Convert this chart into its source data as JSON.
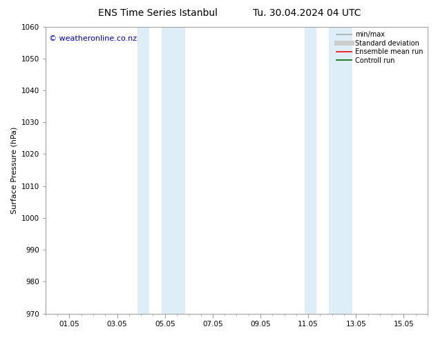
{
  "title_left": "ENS Time Series Istanbul",
  "title_right": "Tu. 30.04.2024 04 UTC",
  "ylabel": "Surface Pressure (hPa)",
  "xlim": [
    0.0,
    16.0
  ],
  "ylim": [
    970,
    1060
  ],
  "yticks": [
    970,
    980,
    990,
    1000,
    1010,
    1020,
    1030,
    1040,
    1050,
    1060
  ],
  "xtick_labels": [
    "01.05",
    "03.05",
    "05.05",
    "07.05",
    "09.05",
    "11.05",
    "13.05",
    "15.05"
  ],
  "xtick_positions": [
    1,
    3,
    5,
    7,
    9,
    11,
    13,
    15
  ],
  "shade_bands": [
    {
      "xmin": 3.85,
      "xmax": 4.35
    },
    {
      "xmin": 4.85,
      "xmax": 5.85
    },
    {
      "xmin": 10.85,
      "xmax": 11.35
    },
    {
      "xmin": 11.85,
      "xmax": 12.85
    }
  ],
  "shade_color": "#ddeef8",
  "background_color": "#ffffff",
  "watermark_text": "© weatheronline.co.nz",
  "watermark_color": "#0000cc",
  "watermark_fontsize": 8,
  "legend_items": [
    {
      "label": "min/max",
      "color": "#aaaaaa",
      "lw": 1.2,
      "style": "solid"
    },
    {
      "label": "Standard deviation",
      "color": "#cccccc",
      "lw": 5,
      "style": "solid"
    },
    {
      "label": "Ensemble mean run",
      "color": "#ff0000",
      "lw": 1.2,
      "style": "solid"
    },
    {
      "label": "Controll run",
      "color": "#006600",
      "lw": 1.2,
      "style": "solid"
    }
  ],
  "title_fontsize": 10,
  "ylabel_fontsize": 8,
  "tick_fontsize": 7.5,
  "spine_color": "#999999"
}
